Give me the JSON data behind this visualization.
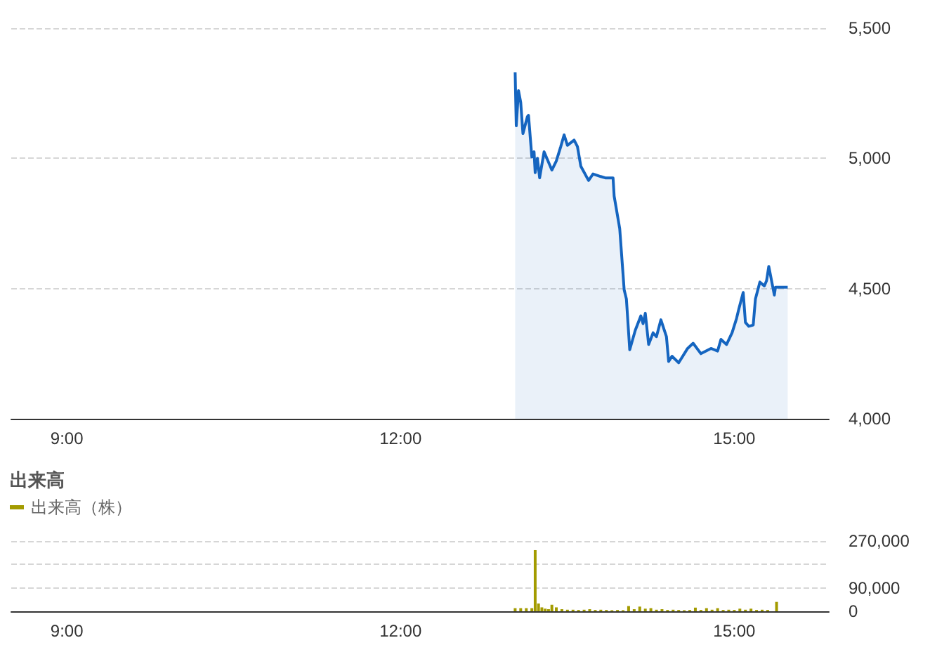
{
  "chart_data": [
    {
      "type": "area",
      "xlim": [
        8.5,
        15.85
      ],
      "ylim": [
        4000,
        5500
      ],
      "xticks": [
        {
          "value": 9,
          "label": "9:00"
        },
        {
          "value": 12,
          "label": "12:00"
        },
        {
          "value": 15,
          "label": "15:00"
        }
      ],
      "yticks": [
        {
          "value": 4000,
          "label": "4,000"
        },
        {
          "value": 4500,
          "label": "4,500"
        },
        {
          "value": 5000,
          "label": "5,000"
        },
        {
          "value": 5500,
          "label": "5,500"
        }
      ],
      "grid": "y",
      "marker": "none",
      "legend": false,
      "series": [
        {
          "color": "#1565c0",
          "x": [
            13.03,
            13.04,
            13.06,
            13.08,
            13.1,
            13.14,
            13.15,
            13.18,
            13.2,
            13.21,
            13.23,
            13.25,
            13.29,
            13.36,
            13.4,
            13.44,
            13.47,
            13.5,
            13.56,
            13.59,
            13.62,
            13.69,
            13.73,
            13.8,
            13.84,
            13.91,
            13.92,
            13.97,
            14.01,
            14.03,
            14.06,
            14.11,
            14.16,
            14.18,
            14.2,
            14.23,
            14.27,
            14.3,
            14.34,
            14.39,
            14.41,
            14.44,
            14.5,
            14.58,
            14.63,
            14.7,
            14.79,
            14.85,
            14.88,
            14.93,
            14.98,
            15.02,
            15.04,
            15.08,
            15.1,
            15.13,
            15.17,
            15.19,
            15.23,
            15.27,
            15.29,
            15.31,
            15.36,
            15.37,
            15.48
          ],
          "values": [
            5330,
            5125,
            5260,
            5215,
            5095,
            5160,
            5165,
            5005,
            5025,
            4945,
            5000,
            4925,
            5025,
            4955,
            4990,
            5045,
            5090,
            5050,
            5070,
            5045,
            4970,
            4915,
            4940,
            4930,
            4925,
            4925,
            4855,
            4730,
            4495,
            4460,
            4265,
            4340,
            4395,
            4365,
            4405,
            4285,
            4330,
            4315,
            4380,
            4315,
            4220,
            4240,
            4215,
            4270,
            4290,
            4250,
            4270,
            4260,
            4305,
            4285,
            4330,
            4385,
            4420,
            4485,
            4370,
            4355,
            4360,
            4460,
            4525,
            4510,
            4530,
            4585,
            4475,
            4505,
            4505
          ]
        }
      ]
    },
    {
      "type": "bar",
      "title": "出来高",
      "xlim": [
        8.5,
        15.85
      ],
      "ylim": [
        0,
        270000
      ],
      "xticks": [
        {
          "value": 9,
          "label": "9:00"
        },
        {
          "value": 12,
          "label": "12:00"
        },
        {
          "value": 15,
          "label": "15:00"
        }
      ],
      "yticks": [
        {
          "value": 0,
          "label": "0"
        },
        {
          "value": 90000,
          "label": "90,000"
        },
        {
          "value": 180000,
          "label": null
        },
        {
          "value": 270000,
          "label": "270,000"
        }
      ],
      "grid": "y",
      "legend": "top left",
      "series": [
        {
          "name": "出来高（株）",
          "color": "#a39b00",
          "x": [
            13.03,
            13.08,
            13.13,
            13.18,
            13.21,
            13.24,
            13.27,
            13.3,
            13.33,
            13.36,
            13.4,
            13.45,
            13.5,
            13.55,
            13.6,
            13.65,
            13.7,
            13.75,
            13.8,
            13.85,
            13.9,
            13.95,
            14.0,
            14.05,
            14.1,
            14.15,
            14.2,
            14.25,
            14.3,
            14.35,
            14.4,
            14.45,
            14.5,
            14.55,
            14.6,
            14.65,
            14.7,
            14.75,
            14.8,
            14.85,
            14.9,
            14.95,
            15.0,
            15.05,
            15.1,
            15.15,
            15.2,
            15.25,
            15.3,
            15.38
          ],
          "values": [
            12000,
            12000,
            12000,
            12000,
            235000,
            30000,
            15000,
            10000,
            8000,
            25000,
            15000,
            8000,
            6000,
            6000,
            5000,
            6000,
            8000,
            5000,
            6000,
            5000,
            4000,
            5000,
            4000,
            20000,
            8000,
            18000,
            10000,
            12000,
            6000,
            8000,
            5000,
            6000,
            5000,
            4000,
            5000,
            14000,
            5000,
            12000,
            6000,
            12000,
            5000,
            6000,
            5000,
            10000,
            6000,
            10000,
            5000,
            6000,
            5000,
            36000
          ]
        }
      ]
    }
  ]
}
